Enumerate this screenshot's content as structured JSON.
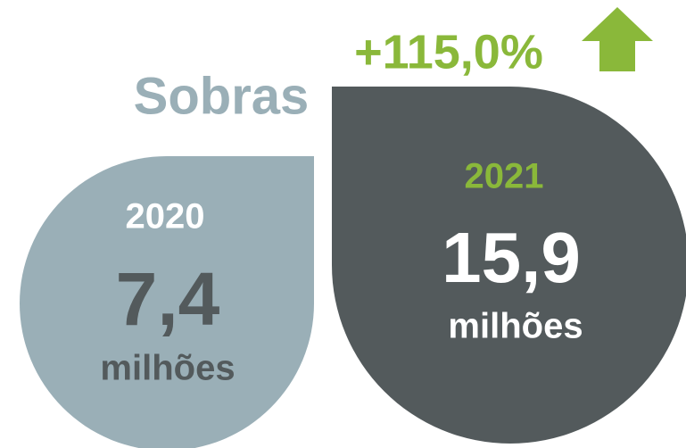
{
  "title": "Sobras",
  "change": "+115,0%",
  "items": [
    {
      "year": "2020",
      "value": "7,4",
      "unit": "milhões"
    },
    {
      "year": "2021",
      "value": "15,9",
      "unit": "milhões"
    }
  ]
}
